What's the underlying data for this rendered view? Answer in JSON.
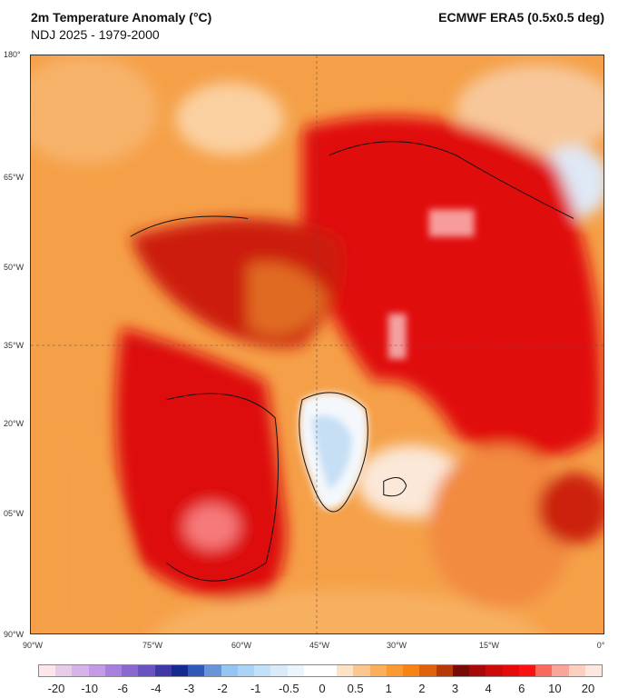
{
  "header": {
    "title": "2m Temperature Anomaly (°C)",
    "subtitle": "NDJ 2025 - 1979-2000",
    "source": "ECMWF ERA5 (0.5x0.5 deg)"
  },
  "axes": {
    "left_labels": [
      "180°",
      "65°W",
      "50°W",
      "35°W",
      "20°W",
      "05°W",
      "90°W"
    ],
    "bottom_labels": [
      "90°W",
      "75°W",
      "60°W",
      "45°W",
      "30°W",
      "15°W",
      "0°"
    ]
  },
  "colorbar": {
    "labels": [
      "-20",
      "-10",
      "-6",
      "-4",
      "-3",
      "-2",
      "-1",
      "-0.5",
      "0",
      "0.5",
      "1",
      "2",
      "3",
      "4",
      "6",
      "10",
      "20"
    ],
    "colors": [
      "#fde6ea",
      "#e8cde8",
      "#d6b4ea",
      "#c39ae6",
      "#a97fde",
      "#8a68d0",
      "#6a52c0",
      "#3f36a8",
      "#152a8e",
      "#2f58b8",
      "#6a94d8",
      "#93c6f2",
      "#aad3f5",
      "#c2e0f7",
      "#d9ebf9",
      "#edf5fc",
      "#ffffff",
      "#ffffff",
      "#fde3c6",
      "#fcc78e",
      "#fbae5c",
      "#f99a33",
      "#f78412",
      "#e0600b",
      "#b53a08",
      "#7a0a06",
      "#a80808",
      "#cc0a0a",
      "#e60b0b",
      "#fa1212",
      "#f86a5c",
      "#f9a59a",
      "#fbd0c0",
      "#fde8e0"
    ]
  }
}
